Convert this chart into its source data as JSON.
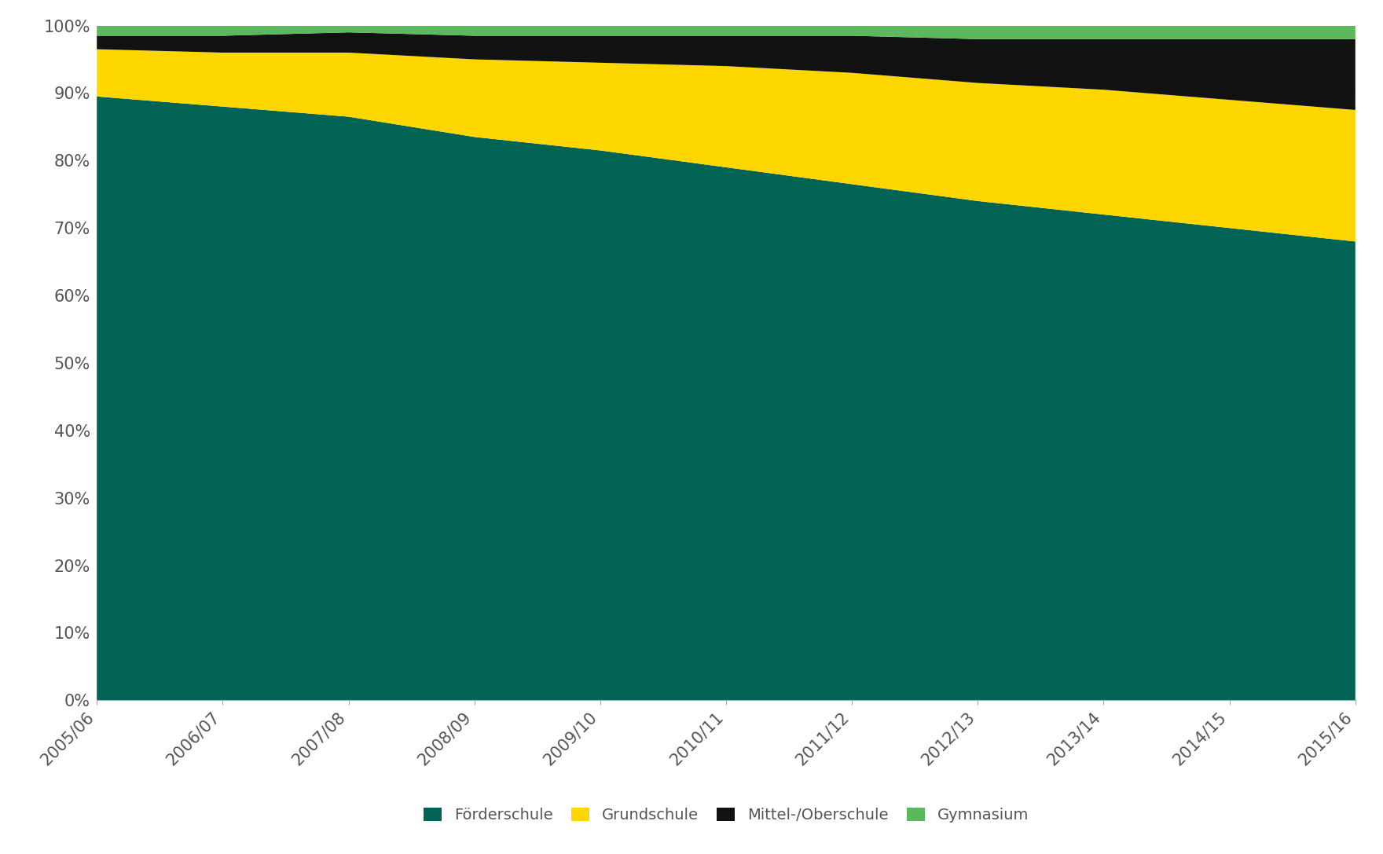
{
  "years": [
    "2005/06",
    "2006/07",
    "2007/08",
    "2008/09",
    "2009/10",
    "2010/11",
    "2011/12",
    "2012/13",
    "2013/14",
    "2014/15",
    "2015/16"
  ],
  "foerderschule": [
    89.5,
    88.0,
    86.5,
    83.5,
    81.5,
    79.0,
    76.5,
    74.0,
    72.0,
    70.0,
    68.0
  ],
  "grundschule": [
    7.0,
    8.0,
    9.5,
    11.5,
    13.0,
    15.0,
    16.5,
    17.5,
    18.5,
    19.0,
    19.5
  ],
  "mittel_ober": [
    2.0,
    2.5,
    3.0,
    3.5,
    4.0,
    4.5,
    5.5,
    6.5,
    7.5,
    9.0,
    10.5
  ],
  "gymnasium": [
    1.5,
    1.5,
    1.0,
    1.5,
    1.5,
    1.5,
    1.5,
    2.0,
    2.0,
    2.0,
    2.0
  ],
  "colors": {
    "foerderschule": "#006354",
    "grundschule": "#FFD700",
    "mittel_ober": "#111111",
    "gymnasium": "#5cb85c"
  },
  "labels": {
    "foerderschule": "Förderschule",
    "grundschule": "Grundschule",
    "mittel_ober": "Mittel-/Oberschule",
    "gymnasium": "Gymnasium"
  },
  "yticks": [
    0,
    10,
    20,
    30,
    40,
    50,
    60,
    70,
    80,
    90,
    100
  ],
  "background_color": "#ffffff",
  "legend_fontsize": 14,
  "tick_fontsize": 15
}
